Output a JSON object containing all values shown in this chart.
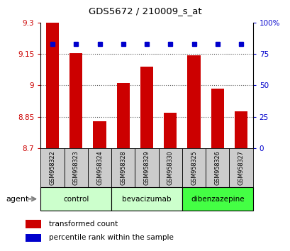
{
  "title": "GDS5672 / 210009_s_at",
  "samples": [
    "GSM958322",
    "GSM958323",
    "GSM958324",
    "GSM958328",
    "GSM958329",
    "GSM958330",
    "GSM958325",
    "GSM958326",
    "GSM958327"
  ],
  "bar_values": [
    9.3,
    9.155,
    8.83,
    9.01,
    9.09,
    8.87,
    9.145,
    8.985,
    8.875
  ],
  "percentile_values": [
    83,
    83,
    83,
    83,
    83,
    83,
    83,
    83,
    83
  ],
  "ymin": 8.7,
  "ymax": 9.3,
  "yticks": [
    8.7,
    8.85,
    9.0,
    9.15,
    9.3
  ],
  "ytick_labels": [
    "8.7",
    "8.85",
    "9",
    "9.15",
    "9.3"
  ],
  "right_yticks": [
    0,
    25,
    50,
    75,
    100
  ],
  "right_ytick_labels": [
    "0",
    "25",
    "50",
    "75",
    "100%"
  ],
  "bar_color": "#cc0000",
  "percentile_color": "#0000cc",
  "bar_width": 0.55,
  "groups": [
    {
      "label": "control",
      "indices": [
        0,
        1,
        2
      ],
      "color": "#ccffcc"
    },
    {
      "label": "bevacizumab",
      "indices": [
        3,
        4,
        5
      ],
      "color": "#ccffcc"
    },
    {
      "label": "dibenzazepine",
      "indices": [
        6,
        7,
        8
      ],
      "color": "#44ff44"
    }
  ],
  "agent_label": "agent",
  "legend_bar_label": "transformed count",
  "legend_pct_label": "percentile rank within the sample",
  "grid_color": "#555555",
  "tick_label_color_left": "#cc0000",
  "tick_label_color_right": "#0000cc",
  "sample_box_color": "#cccccc",
  "bg_color": "#ffffff"
}
